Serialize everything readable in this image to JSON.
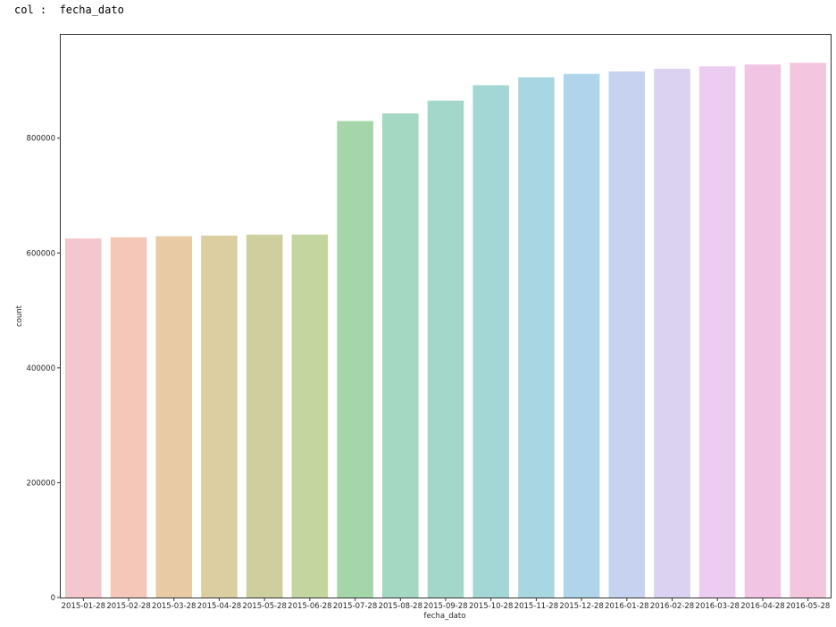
{
  "output": {
    "line": "col :  fecha_dato"
  },
  "chart_data": {
    "type": "bar",
    "xlabel": "fecha_dato",
    "ylabel": "count",
    "ylim": [
      0,
      980000
    ],
    "yticks": [
      0,
      200000,
      400000,
      600000,
      800000
    ],
    "grid": false,
    "categories": [
      "2015-01-28",
      "2015-02-28",
      "2015-03-28",
      "2015-04-28",
      "2015-05-28",
      "2015-06-28",
      "2015-07-28",
      "2015-08-28",
      "2015-09-28",
      "2015-10-28",
      "2015-11-28",
      "2015-12-28",
      "2016-01-28",
      "2016-02-28",
      "2016-03-28",
      "2016-04-28",
      "2016-05-28"
    ],
    "values": [
      625457,
      627394,
      629209,
      630367,
      631957,
      632110,
      829817,
      843201,
      865440,
      892251,
      906109,
      912021,
      916269,
      920904,
      925076,
      928274,
      931453
    ],
    "colors": [
      "#f4c7cc",
      "#f4c7b9",
      "#e8cba4",
      "#dbcea0",
      "#cfce9e",
      "#c3d69f",
      "#a5d6a9",
      "#a4d8c2",
      "#a3d7c9",
      "#a3d7d6",
      "#a8d7e1",
      "#b0d5ea",
      "#c7d2f1",
      "#dbd1f1",
      "#ecccf1",
      "#f2c4e4",
      "#f3c6de"
    ]
  }
}
